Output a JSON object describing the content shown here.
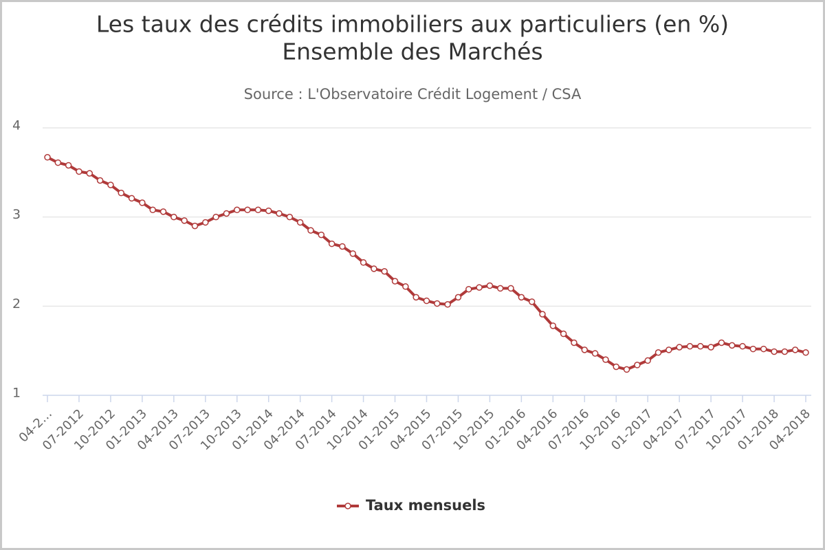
{
  "chart_data": {
    "type": "line",
    "title": [
      "Les taux des crédits immobiliers aux particuliers (en %)",
      "Ensemble des Marchés"
    ],
    "subtitle": "Source : L'Observatoire Crédit Logement / CSA",
    "categories": [
      "04-2…",
      null,
      null,
      "07-2012",
      null,
      null,
      "10-2012",
      null,
      null,
      "01-2013",
      null,
      null,
      "04-2013",
      null,
      null,
      "07-2013",
      null,
      null,
      "10-2013",
      null,
      null,
      "01-2014",
      null,
      null,
      "04-2014",
      null,
      null,
      "07-2014",
      null,
      null,
      "10-2014",
      null,
      null,
      "01-2015",
      null,
      null,
      "04-2015",
      null,
      null,
      "07-2015",
      null,
      null,
      "10-2015",
      null,
      null,
      "01-2016",
      null,
      null,
      "04-2016",
      null,
      null,
      "07-2016",
      null,
      null,
      "10-2016",
      null,
      null,
      "01-2017",
      null,
      null,
      "04-2017",
      null,
      null,
      "07-2017",
      null,
      null,
      "10-2017",
      null,
      null,
      "01-2018",
      null,
      null,
      "04-2018"
    ],
    "series": [
      {
        "name": "Taux mensuels",
        "color": "#b03a3a",
        "values": [
          3.67,
          3.61,
          3.58,
          3.51,
          3.49,
          3.41,
          3.36,
          3.27,
          3.21,
          3.16,
          3.08,
          3.06,
          3.0,
          2.96,
          2.9,
          2.94,
          3.0,
          3.04,
          3.08,
          3.08,
          3.08,
          3.07,
          3.04,
          3.0,
          2.94,
          2.85,
          2.8,
          2.7,
          2.67,
          2.59,
          2.49,
          2.42,
          2.39,
          2.28,
          2.22,
          2.1,
          2.06,
          2.03,
          2.02,
          2.1,
          2.19,
          2.21,
          2.23,
          2.2,
          2.2,
          2.1,
          2.05,
          1.91,
          1.78,
          1.69,
          1.59,
          1.51,
          1.47,
          1.4,
          1.32,
          1.29,
          1.34,
          1.39,
          1.48,
          1.51,
          1.54,
          1.55,
          1.55,
          1.54,
          1.59,
          1.56,
          1.55,
          1.52,
          1.52,
          1.49,
          1.49,
          1.51,
          1.48
        ]
      }
    ],
    "ylim": [
      1,
      4
    ],
    "yticks": [
      1,
      2,
      3,
      4
    ],
    "grid": true,
    "legend": "bottom"
  }
}
